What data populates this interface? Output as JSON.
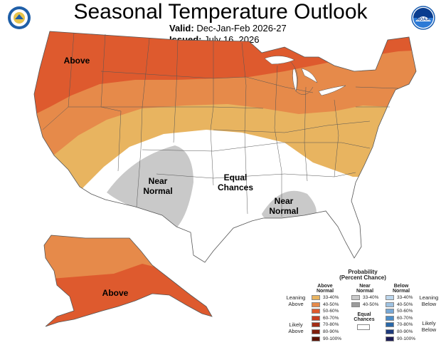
{
  "header": {
    "title": "Seasonal Temperature Outlook",
    "valid_label": "Valid:",
    "valid_value": "Dec-Jan-Feb 2026-27",
    "issued_label": "Issued:",
    "issued_value": "July 16, 2026",
    "left_logo": "doc-seal-icon",
    "right_logo": "noaa-logo-icon"
  },
  "map_labels": {
    "above_west": "Above",
    "above_alaska": "Above",
    "near_normal_west_1": "Near",
    "near_normal_west_2": "Normal",
    "equal_1": "Equal",
    "equal_2": "Chances",
    "near_normal_south_1": "Near",
    "near_normal_south_2": "Normal"
  },
  "colors": {
    "above_33_40": "#e8b460",
    "above_40_50": "#e68a4a",
    "above_50_60": "#de5a2e",
    "above_60_70": "#c83d20",
    "above_70_80": "#a32d15",
    "above_80_90": "#7f1e0c",
    "above_90_100": "#5c1205",
    "near_33_40": "#c9c9c9",
    "near_40_50": "#9b9b9b",
    "below_33_40": "#bcd6ec",
    "below_40_50": "#9ec2e2",
    "below_50_60": "#77a8d6",
    "below_60_70": "#4a8cc8",
    "below_70_80": "#2967a8",
    "below_80_90": "#1d3a7c",
    "below_90_100": "#1c1c55",
    "equal": "#ffffff"
  },
  "legend": {
    "title_1": "Probability",
    "title_2": "(Percent Chance)",
    "above_header_1": "Above",
    "above_header_2": "Normal",
    "near_header_1": "Near",
    "near_header_2": "Normal",
    "below_header_1": "Below",
    "below_header_2": "Normal",
    "ranges": [
      "33-40%",
      "40-50%",
      "50-60%",
      "60-70%",
      "70-80%",
      "80-90%",
      "90-100%"
    ],
    "near_ranges": [
      "33-40%",
      "40-50%"
    ],
    "leaning_above_1": "Leaning",
    "leaning_above_2": "Above",
    "likely_above_1": "Likely",
    "likely_above_2": "Above",
    "leaning_below_1": "Leaning",
    "leaning_below_2": "Below",
    "likely_below_1": "Likely",
    "likely_below_2": "Below",
    "equal_1": "Equal",
    "equal_2": "Chances"
  }
}
